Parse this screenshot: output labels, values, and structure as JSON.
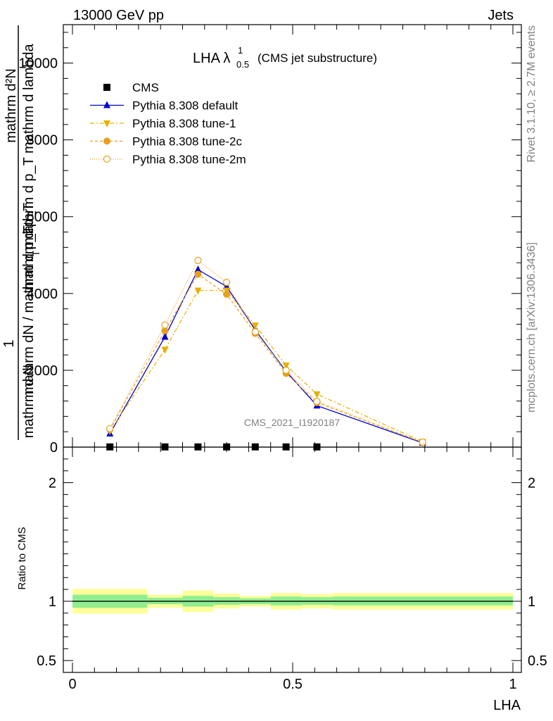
{
  "header": {
    "left": "13000 GeV pp",
    "right": "Jets"
  },
  "side_labels": {
    "rivet": "Rivet 3.1.10, ≥ 2.7M events",
    "mcplots": "mcplots.cern.ch [arXiv:1306.3436]"
  },
  "watermark": "CMS_2021_I1920187",
  "chart_data": [
    {
      "type": "line",
      "title_main": "LHA λ",
      "title_sup": "1",
      "title_sub": "0.5",
      "title_suffix": "(CMS jet substructure)",
      "xlabel": "LHA",
      "ylabel_parts": {
        "numerator": "1",
        "frac_top": "mathrm d²N",
        "frac_bottom": "mathrm d p_T mathrm d lambda",
        "left_bottom": "mathrm dN / mathrm d p_T",
        "overlap_a": "mathrm d p_T",
        "overlap_b": "mathrm d N",
        "overlap_c": "T"
      },
      "xlim": [
        0,
        1
      ],
      "ylim": [
        0,
        11000
      ],
      "yticks": [
        0,
        2000,
        4000,
        6000,
        8000,
        10000
      ],
      "ytick_labels": [
        "0",
        "2000",
        "4000",
        "6000",
        "8000",
        "10000"
      ],
      "xticks": [
        0,
        0.5,
        1
      ],
      "xtick_labels": [
        "0",
        "0.5",
        "1"
      ],
      "legend_position": "top-left",
      "series": [
        {
          "name": "CMS",
          "color": "#000000",
          "marker": "square",
          "x": [
            0.085,
            0.21,
            0.285,
            0.35,
            0.415,
            0.485,
            0.555
          ],
          "y": [
            5,
            5,
            5,
            5,
            5,
            5,
            5
          ]
        },
        {
          "name": "Pythia 8.308 default",
          "color": "#0000cc",
          "marker": "triangle-up",
          "dash": "",
          "x": [
            0.085,
            0.21,
            0.285,
            0.35,
            0.415,
            0.485,
            0.555,
            0.795
          ],
          "y": [
            350,
            2870,
            4620,
            4180,
            3050,
            1970,
            1080,
            110
          ]
        },
        {
          "name": "Pythia 8.308 tune-1",
          "color": "#e6b000",
          "marker": "triangle-down",
          "dash": "6,3,2,3",
          "x": [
            0.085,
            0.21,
            0.285,
            0.35,
            0.415,
            0.485,
            0.555,
            0.795
          ],
          "y": [
            420,
            2540,
            4080,
            4080,
            3170,
            2130,
            1380,
            140
          ]
        },
        {
          "name": "Pythia 8.308 tune-2c",
          "color": "#e6a020",
          "marker": "circle",
          "dash": "4,3",
          "x": [
            0.085,
            0.21,
            0.285,
            0.35,
            0.415,
            0.485,
            0.555,
            0.795
          ],
          "y": [
            460,
            3030,
            4500,
            3980,
            2960,
            1920,
            1160,
            120
          ]
        },
        {
          "name": "Pythia 8.308 tune-2m",
          "color": "#e6a020",
          "marker": "circle-open",
          "dash": "1,2",
          "x": [
            0.085,
            0.21,
            0.285,
            0.35,
            0.415,
            0.485,
            0.555,
            0.795
          ],
          "y": [
            480,
            3180,
            4860,
            4290,
            3000,
            2000,
            1190,
            130
          ]
        }
      ]
    },
    {
      "type": "area",
      "ylabel": "Ratio to CMS",
      "xlim": [
        0,
        1
      ],
      "ylim": [
        0.4,
        2.3
      ],
      "yticks": [
        0.5,
        1,
        2
      ],
      "ytick_labels": [
        "0.5",
        "1",
        "2"
      ],
      "bin_edges": [
        0,
        0.17,
        0.25,
        0.32,
        0.38,
        0.45,
        0.52,
        0.59,
        1.0
      ],
      "band_outer": {
        "color": "#ffff99",
        "low": [
          0.895,
          0.945,
          0.91,
          0.94,
          0.955,
          0.93,
          0.94,
          0.93
        ],
        "high": [
          1.105,
          1.055,
          1.09,
          1.065,
          1.045,
          1.07,
          1.06,
          1.07
        ]
      },
      "band_inner": {
        "color": "#90ee90",
        "low": [
          0.945,
          0.975,
          0.955,
          0.97,
          0.975,
          0.965,
          0.97,
          0.965
        ],
        "high": [
          1.055,
          1.03,
          1.045,
          1.035,
          1.025,
          1.04,
          1.035,
          1.04
        ]
      },
      "reference": 1
    }
  ]
}
